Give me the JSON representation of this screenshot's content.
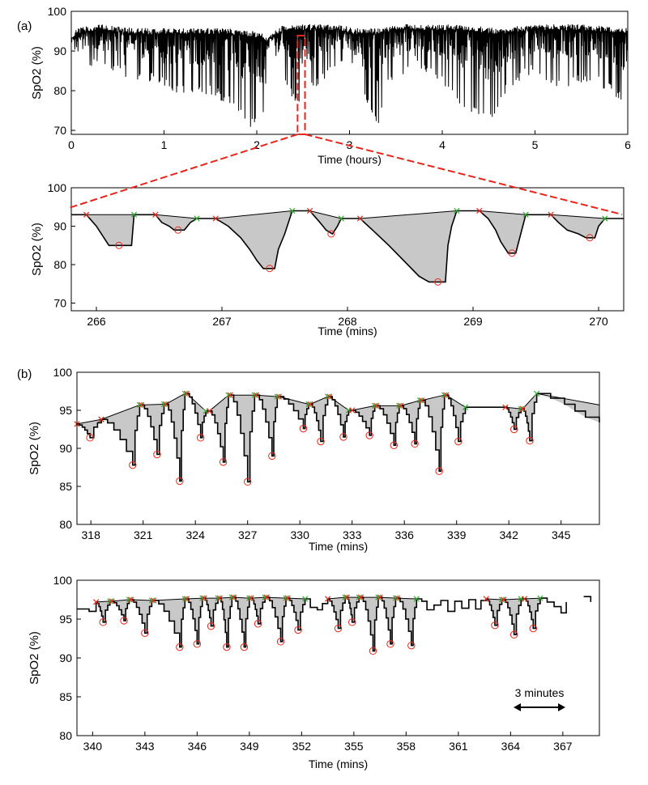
{
  "panel_labels": {
    "a": "(a)",
    "b": "(b)"
  },
  "scale_bar": {
    "label": "3 minutes",
    "duration_mins": 3
  },
  "colors": {
    "signal": "#000000",
    "shade": "#c8c8c8",
    "onset_marker": "#e8251c",
    "end_marker": "#2fae2f",
    "zoom_box": "#e8251c"
  },
  "chart_data": [
    {
      "id": "a_top",
      "type": "line",
      "title": "",
      "xlabel": "Time (hours)",
      "ylabel": "SpO2 (%)",
      "xlim": [
        0,
        6
      ],
      "ylim": [
        69,
        100
      ],
      "xticks": [
        0,
        1,
        2,
        3,
        4,
        5,
        6
      ],
      "yticks": [
        70,
        80,
        90,
        100
      ],
      "baseline": [
        {
          "x": 0.0,
          "y": 93
        },
        {
          "x": 0.05,
          "y": 95
        },
        {
          "x": 0.3,
          "y": 96
        },
        {
          "x": 0.7,
          "y": 95
        },
        {
          "x": 1.2,
          "y": 95
        },
        {
          "x": 1.7,
          "y": 95
        },
        {
          "x": 2.05,
          "y": 94
        },
        {
          "x": 2.1,
          "y": 93
        },
        {
          "x": 2.3,
          "y": 96
        },
        {
          "x": 2.9,
          "y": 96
        },
        {
          "x": 3.05,
          "y": 95
        },
        {
          "x": 3.3,
          "y": 95
        },
        {
          "x": 3.6,
          "y": 96
        },
        {
          "x": 4.2,
          "y": 96
        },
        {
          "x": 4.6,
          "y": 95
        },
        {
          "x": 5.0,
          "y": 96
        },
        {
          "x": 5.5,
          "y": 96
        },
        {
          "x": 6.0,
          "y": 95
        }
      ],
      "dip_floor": [
        {
          "x": 0.0,
          "y": 91
        },
        {
          "x": 0.2,
          "y": 86
        },
        {
          "x": 0.5,
          "y": 84
        },
        {
          "x": 0.8,
          "y": 82
        },
        {
          "x": 1.2,
          "y": 79
        },
        {
          "x": 1.5,
          "y": 79
        },
        {
          "x": 1.8,
          "y": 74
        },
        {
          "x": 1.95,
          "y": 70
        },
        {
          "x": 2.0,
          "y": 74
        },
        {
          "x": 2.05,
          "y": 70
        },
        {
          "x": 2.15,
          "y": 93
        },
        {
          "x": 2.25,
          "y": 84
        },
        {
          "x": 2.4,
          "y": 76
        },
        {
          "x": 2.6,
          "y": 80
        },
        {
          "x": 2.8,
          "y": 84
        },
        {
          "x": 3.0,
          "y": 86
        },
        {
          "x": 3.15,
          "y": 78
        },
        {
          "x": 3.3,
          "y": 70
        },
        {
          "x": 3.4,
          "y": 80
        },
        {
          "x": 3.7,
          "y": 86
        },
        {
          "x": 4.0,
          "y": 82
        },
        {
          "x": 4.2,
          "y": 75
        },
        {
          "x": 4.4,
          "y": 73
        },
        {
          "x": 4.5,
          "y": 70
        },
        {
          "x": 4.7,
          "y": 80
        },
        {
          "x": 5.0,
          "y": 84
        },
        {
          "x": 5.3,
          "y": 80
        },
        {
          "x": 5.6,
          "y": 82
        },
        {
          "x": 5.9,
          "y": 78
        },
        {
          "x": 6.0,
          "y": 77
        }
      ],
      "zoom_window_hours": [
        2.44,
        2.52
      ]
    },
    {
      "id": "a_zoom",
      "type": "line",
      "title": "",
      "xlabel": "Time (mins)",
      "ylabel": "SpO2 (%)",
      "xlim": [
        265.8,
        270.2
      ],
      "ylim": [
        68,
        100
      ],
      "xticks": [
        266,
        267,
        268,
        269,
        270
      ],
      "yticks": [
        70,
        80,
        90,
        100
      ],
      "signal": [
        [
          265.8,
          93
        ],
        [
          265.92,
          93
        ],
        [
          266.0,
          90
        ],
        [
          266.06,
          87
        ],
        [
          266.1,
          85
        ],
        [
          266.28,
          85
        ],
        [
          266.3,
          93
        ],
        [
          266.47,
          93
        ],
        [
          266.52,
          91
        ],
        [
          266.58,
          90
        ],
        [
          266.62,
          89
        ],
        [
          266.7,
          89
        ],
        [
          266.75,
          91
        ],
        [
          266.8,
          92
        ],
        [
          266.95,
          92
        ],
        [
          267.05,
          90
        ],
        [
          267.15,
          87
        ],
        [
          267.22,
          84
        ],
        [
          267.28,
          81
        ],
        [
          267.33,
          79
        ],
        [
          267.42,
          79
        ],
        [
          267.45,
          84
        ],
        [
          267.5,
          88
        ],
        [
          267.56,
          94
        ],
        [
          267.7,
          94
        ],
        [
          267.78,
          91
        ],
        [
          267.83,
          89
        ],
        [
          267.88,
          88
        ],
        [
          267.92,
          90
        ],
        [
          267.95,
          92
        ],
        [
          268.1,
          92
        ],
        [
          268.2,
          89
        ],
        [
          268.33,
          85
        ],
        [
          268.45,
          81
        ],
        [
          268.57,
          77
        ],
        [
          268.65,
          75.5
        ],
        [
          268.78,
          75.5
        ],
        [
          268.8,
          85
        ],
        [
          268.83,
          90
        ],
        [
          268.87,
          94
        ],
        [
          269.05,
          94
        ],
        [
          269.12,
          92
        ],
        [
          269.18,
          89
        ],
        [
          269.22,
          86
        ],
        [
          269.28,
          83
        ],
        [
          269.34,
          83
        ],
        [
          269.38,
          88
        ],
        [
          269.42,
          93
        ],
        [
          269.62,
          93
        ],
        [
          269.68,
          91
        ],
        [
          269.75,
          89
        ],
        [
          269.84,
          88
        ],
        [
          269.9,
          87
        ],
        [
          269.97,
          87
        ],
        [
          270.0,
          90
        ],
        [
          270.05,
          92
        ],
        [
          270.2,
          92
        ]
      ],
      "events": [
        {
          "start": [
            265.92,
            93
          ],
          "end": [
            266.3,
            93
          ],
          "nadir": [
            266.18,
            85
          ]
        },
        {
          "start": [
            266.47,
            93
          ],
          "end": [
            266.8,
            92
          ],
          "nadir": [
            266.65,
            89
          ]
        },
        {
          "start": [
            266.95,
            92
          ],
          "end": [
            267.56,
            94
          ],
          "nadir": [
            267.38,
            79
          ]
        },
        {
          "start": [
            267.7,
            94
          ],
          "end": [
            267.95,
            92
          ],
          "nadir": [
            267.87,
            88
          ]
        },
        {
          "start": [
            268.1,
            92
          ],
          "end": [
            268.87,
            94
          ],
          "nadir": [
            268.72,
            75.5
          ]
        },
        {
          "start": [
            269.05,
            94
          ],
          "end": [
            269.42,
            93
          ],
          "nadir": [
            269.31,
            83
          ]
        },
        {
          "start": [
            269.62,
            93
          ],
          "end": [
            270.05,
            92
          ],
          "nadir": [
            269.93,
            87
          ]
        }
      ]
    },
    {
      "id": "b_top",
      "type": "line",
      "title": "",
      "xlabel": "Time (mins)",
      "ylabel": "SpO2 (%)",
      "xlim": [
        317.2,
        347.2
      ],
      "ylim": [
        80,
        100
      ],
      "xticks": [
        318,
        321,
        324,
        327,
        330,
        333,
        336,
        339,
        342,
        345
      ],
      "yticks": [
        80,
        85,
        90,
        95,
        100
      ],
      "signal_start": [
        317.2,
        93
      ],
      "trailing": [
        [
          344.4,
          96.6
        ],
        [
          345.2,
          95.8
        ],
        [
          345.8,
          94.9
        ],
        [
          346.4,
          94.1
        ],
        [
          347.2,
          93.4
        ]
      ],
      "events": [
        {
          "s": 317.2,
          "sy": 93.2,
          "n": 317.95,
          "ny": 91.4,
          "e": 318.6,
          "ey": 93.8
        },
        {
          "s": 318.6,
          "sy": 93.8,
          "n": 320.4,
          "ny": 87.8,
          "e": 320.8,
          "ey": 95.7
        },
        {
          "s": 320.9,
          "sy": 95.7,
          "n": 321.8,
          "ny": 89.2,
          "e": 322.2,
          "ey": 95.8
        },
        {
          "s": 322.3,
          "sy": 95.8,
          "n": 323.1,
          "ny": 85.7,
          "e": 323.4,
          "ey": 97.2
        },
        {
          "s": 323.5,
          "sy": 97.2,
          "n": 324.3,
          "ny": 91.4,
          "e": 324.6,
          "ey": 94.9
        },
        {
          "s": 324.8,
          "sy": 94.9,
          "n": 325.6,
          "ny": 88.2,
          "e": 325.9,
          "ey": 97.0
        },
        {
          "s": 326.0,
          "sy": 97.0,
          "n": 327.0,
          "ny": 85.6,
          "e": 327.4,
          "ey": 97.0
        },
        {
          "s": 327.5,
          "sy": 97.0,
          "n": 328.4,
          "ny": 89.0,
          "e": 328.7,
          "ey": 96.8
        },
        {
          "s": 328.8,
          "sy": 96.8,
          "n": 330.2,
          "ny": 92.6,
          "e": 330.5,
          "ey": 95.8
        },
        {
          "s": 330.6,
          "sy": 95.8,
          "n": 331.2,
          "ny": 90.9,
          "e": 331.6,
          "ey": 96.8
        },
        {
          "s": 331.7,
          "sy": 96.8,
          "n": 332.5,
          "ny": 91.5,
          "e": 332.8,
          "ey": 95.0
        },
        {
          "s": 333.0,
          "sy": 95.0,
          "n": 334.0,
          "ny": 91.7,
          "e": 334.3,
          "ey": 95.6
        },
        {
          "s": 334.4,
          "sy": 95.6,
          "n": 335.4,
          "ny": 90.4,
          "e": 335.7,
          "ey": 95.6
        },
        {
          "s": 335.8,
          "sy": 95.6,
          "n": 336.6,
          "ny": 90.6,
          "e": 336.9,
          "ey": 96.3
        },
        {
          "s": 337.0,
          "sy": 96.3,
          "n": 338.0,
          "ny": 87.0,
          "e": 338.3,
          "ey": 97.0
        },
        {
          "s": 338.4,
          "sy": 97.0,
          "n": 339.1,
          "ny": 90.9,
          "e": 339.5,
          "ey": 95.4
        },
        {
          "s": 341.8,
          "sy": 95.4,
          "n": 342.3,
          "ny": 92.5,
          "e": 342.7,
          "ey": 95.2
        },
        {
          "s": 342.8,
          "sy": 95.2,
          "n": 343.2,
          "ny": 91.0,
          "e": 343.6,
          "ey": 97.2
        }
      ]
    },
    {
      "id": "b_bottom",
      "type": "line",
      "title": "",
      "xlabel": "Time (mins)",
      "ylabel": "SpO2 (%)",
      "xlim": [
        339.1,
        369.1
      ],
      "ylim": [
        80,
        100
      ],
      "xticks": [
        340,
        343,
        346,
        349,
        352,
        355,
        358,
        361,
        364,
        367
      ],
      "yticks": [
        80,
        85,
        90,
        95,
        100
      ],
      "events": [
        {
          "s": 340.2,
          "sy": 97.2,
          "n": 340.6,
          "ny": 94.6,
          "e": 341.0,
          "ey": 97.3
        },
        {
          "s": 341.1,
          "sy": 97.3,
          "n": 341.8,
          "ny": 94.8,
          "e": 342.1,
          "ey": 97.5
        },
        {
          "s": 342.2,
          "sy": 97.5,
          "n": 343.0,
          "ny": 93.2,
          "e": 343.4,
          "ey": 97.4
        },
        {
          "s": 343.5,
          "sy": 97.4,
          "n": 345.0,
          "ny": 91.4,
          "e": 345.3,
          "ey": 97.6
        },
        {
          "s": 345.4,
          "sy": 97.6,
          "n": 346.0,
          "ny": 91.8,
          "e": 346.3,
          "ey": 97.7
        },
        {
          "s": 346.4,
          "sy": 97.7,
          "n": 346.8,
          "ny": 94.1,
          "e": 347.2,
          "ey": 97.7
        },
        {
          "s": 347.3,
          "sy": 97.7,
          "n": 347.7,
          "ny": 91.4,
          "e": 348.0,
          "ey": 97.8
        },
        {
          "s": 348.1,
          "sy": 97.8,
          "n": 348.7,
          "ny": 91.4,
          "e": 349.0,
          "ey": 97.7
        },
        {
          "s": 349.1,
          "sy": 97.7,
          "n": 349.5,
          "ny": 94.4,
          "e": 349.9,
          "ey": 97.8
        },
        {
          "s": 350.0,
          "sy": 97.8,
          "n": 350.8,
          "ny": 92.1,
          "e": 351.1,
          "ey": 97.7
        },
        {
          "s": 351.2,
          "sy": 97.7,
          "n": 351.8,
          "ny": 93.6,
          "e": 352.2,
          "ey": 97.6
        },
        {
          "s": 353.5,
          "sy": 97.6,
          "n": 354.1,
          "ny": 93.8,
          "e": 354.5,
          "ey": 97.8
        },
        {
          "s": 354.6,
          "sy": 97.8,
          "n": 354.9,
          "ny": 94.6,
          "e": 355.3,
          "ey": 97.8
        },
        {
          "s": 355.4,
          "sy": 97.8,
          "n": 356.1,
          "ny": 90.9,
          "e": 356.4,
          "ey": 97.8
        },
        {
          "s": 356.5,
          "sy": 97.8,
          "n": 357.1,
          "ny": 91.8,
          "e": 357.4,
          "ey": 97.7
        },
        {
          "s": 357.5,
          "sy": 97.7,
          "n": 358.3,
          "ny": 91.6,
          "e": 358.6,
          "ey": 97.6
        },
        {
          "s": 362.6,
          "sy": 97.6,
          "n": 363.1,
          "ny": 94.2,
          "e": 363.5,
          "ey": 97.5
        },
        {
          "s": 363.6,
          "sy": 97.5,
          "n": 364.2,
          "ny": 93.0,
          "e": 364.6,
          "ey": 97.6
        },
        {
          "s": 364.8,
          "sy": 97.6,
          "n": 365.3,
          "ny": 93.8,
          "e": 365.7,
          "ey": 97.7
        }
      ],
      "between": [
        [
          [
            339.1,
            96.3
          ],
          [
            339.6,
            96.3
          ],
          [
            339.8,
            96.0
          ],
          [
            340.2,
            97.2
          ]
        ],
        [
          [
            352.2,
            97.6
          ],
          [
            352.5,
            96.5
          ],
          [
            352.9,
            96.2
          ],
          [
            353.2,
            97.0
          ],
          [
            353.5,
            97.6
          ]
        ],
        [
          [
            358.6,
            97.6
          ],
          [
            358.9,
            97.3
          ],
          [
            359.2,
            96.2
          ],
          [
            359.6,
            96.8
          ],
          [
            360.0,
            97.4
          ],
          [
            360.4,
            96.0
          ],
          [
            360.8,
            97.3
          ],
          [
            361.2,
            96.4
          ],
          [
            361.6,
            97.5
          ],
          [
            362.0,
            96.3
          ],
          [
            362.3,
            97.4
          ],
          [
            362.6,
            97.6
          ]
        ],
        [
          [
            365.7,
            97.7
          ],
          [
            366.1,
            97.2
          ],
          [
            366.5,
            96.6
          ],
          [
            366.9,
            95.8
          ],
          [
            367.2,
            97.2
          ]
        ]
      ],
      "tail": [
        [
          368.2,
          97.9
        ],
        [
          368.6,
          97.9
        ],
        [
          368.6,
          97.2
        ]
      ]
    }
  ]
}
